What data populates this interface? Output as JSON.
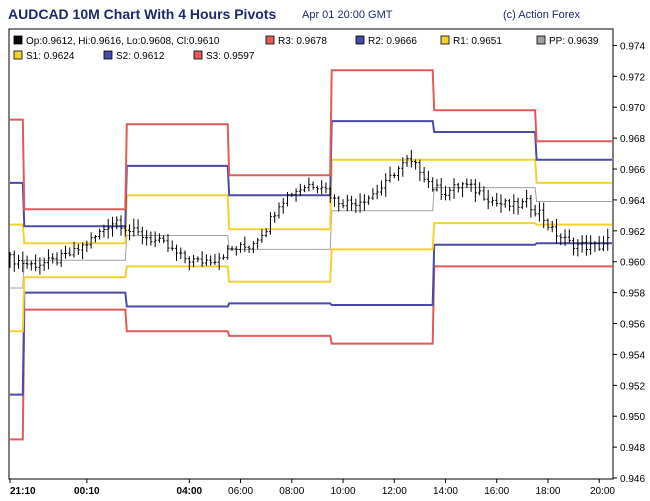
{
  "header": {
    "title": "AUDCAD 10M Chart With 4 Hours Pivots",
    "timestamp": "Apr 01 20:00 GMT",
    "credit": "(c) Action Forex"
  },
  "chart_data": {
    "type": "line",
    "title": "AUDCAD 10M Chart With 4 Hours Pivots",
    "xlabel": "",
    "ylabel": "",
    "ylim": [
      0.946,
      0.975
    ],
    "yticks": [
      "0.974",
      "0.972",
      "0.970",
      "0.968",
      "0.966",
      "0.964",
      "0.962",
      "0.960",
      "0.958",
      "0.956",
      "0.954",
      "0.952",
      "0.950",
      "0.948",
      "0.946"
    ],
    "xticks": [
      {
        "label": "21:10",
        "x": 0,
        "bold": true
      },
      {
        "label": "00:10",
        "x": 18,
        "bold": true
      },
      {
        "label": "04:00",
        "x": 42,
        "bold": true
      },
      {
        "label": "06:00",
        "x": 54,
        "bold": false
      },
      {
        "label": "08:00",
        "x": 66,
        "bold": false
      },
      {
        "label": "10:00",
        "x": 78,
        "bold": false
      },
      {
        "label": "12:00",
        "x": 90,
        "bold": false
      },
      {
        "label": "14:00",
        "x": 102,
        "bold": false
      },
      {
        "label": "16:00",
        "x": 114,
        "bold": false
      },
      {
        "label": "18:00",
        "x": 126,
        "bold": false
      },
      {
        "label": "20:00",
        "x": 138,
        "bold": false
      }
    ],
    "legend": [
      {
        "text": "Op:0.9612, Hi:0.9616, Lo:0.9608, Cl:0.9610",
        "color": "#000000"
      },
      {
        "text": "R3: 0.9678",
        "color": "#e05a5a"
      },
      {
        "text": "R2: 0.9666",
        "color": "#4a4aa8"
      },
      {
        "text": "R1: 0.9651",
        "color": "#f2d22e"
      },
      {
        "text": "PP: 0.9639",
        "color": "#a0a0a0"
      },
      {
        "text": "S1: 0.9624",
        "color": "#f2d22e"
      },
      {
        "text": "S2: 0.9612",
        "color": "#4a4aa8"
      },
      {
        "text": "S3: 0.9597",
        "color": "#e05a5a"
      }
    ],
    "pivot_segments": {
      "x_ranges": [
        [
          0,
          3
        ],
        [
          3,
          27
        ],
        [
          27,
          51
        ],
        [
          51,
          75
        ],
        [
          75,
          99
        ],
        [
          99,
          123
        ],
        [
          123,
          141
        ]
      ],
      "series": [
        {
          "name": "R3",
          "color": "#e05a5a",
          "values": [
            0.9692,
            0.9634,
            0.9689,
            0.9656,
            0.9724,
            0.9698,
            0.9678
          ]
        },
        {
          "name": "R2",
          "color": "#4a4aa8",
          "values": [
            0.9651,
            0.9623,
            0.9662,
            0.9643,
            0.9691,
            0.9684,
            0.9666
          ]
        },
        {
          "name": "R1",
          "color": "#f2d22e",
          "values": [
            0.9624,
            0.9612,
            0.9643,
            0.9621,
            0.9666,
            0.9666,
            0.9651
          ]
        },
        {
          "name": "PP",
          "color": "#a0a0a0",
          "values": [
            0.9583,
            0.9601,
            0.9617,
            0.9608,
            0.9633,
            0.9648,
            0.9639
          ]
        },
        {
          "name": "S1",
          "color": "#f2d22e",
          "values": [
            0.9555,
            0.959,
            0.9597,
            0.9587,
            0.9608,
            0.9625,
            0.9624
          ]
        },
        {
          "name": "S2",
          "color": "#4a4aa8",
          "values": [
            0.9514,
            0.958,
            0.9571,
            0.9573,
            0.9572,
            0.9611,
            0.9612
          ]
        },
        {
          "name": "S3",
          "color": "#e05a5a",
          "values": [
            0.9485,
            0.9569,
            0.9555,
            0.9552,
            0.9547,
            0.9597,
            0.9597
          ]
        }
      ]
    },
    "price_series": {
      "color": "#000000",
      "anchors": [
        [
          0,
          0.9602
        ],
        [
          5,
          0.9598
        ],
        [
          10,
          0.96
        ],
        [
          15,
          0.9606
        ],
        [
          20,
          0.9616
        ],
        [
          23,
          0.9624
        ],
        [
          25,
          0.9627
        ],
        [
          28,
          0.962
        ],
        [
          32,
          0.9616
        ],
        [
          36,
          0.9611
        ],
        [
          40,
          0.9603
        ],
        [
          44,
          0.96
        ],
        [
          48,
          0.9602
        ],
        [
          52,
          0.9608
        ],
        [
          56,
          0.961
        ],
        [
          60,
          0.9622
        ],
        [
          63,
          0.9638
        ],
        [
          66,
          0.9645
        ],
        [
          70,
          0.965
        ],
        [
          73,
          0.965
        ],
        [
          76,
          0.964
        ],
        [
          80,
          0.9638
        ],
        [
          84,
          0.9642
        ],
        [
          88,
          0.965
        ],
        [
          90,
          0.9658
        ],
        [
          93,
          0.9665
        ],
        [
          96,
          0.966
        ],
        [
          99,
          0.9648
        ],
        [
          102,
          0.9645
        ],
        [
          106,
          0.965
        ],
        [
          110,
          0.9645
        ],
        [
          114,
          0.9638
        ],
        [
          118,
          0.9636
        ],
        [
          121,
          0.9638
        ],
        [
          124,
          0.9632
        ],
        [
          127,
          0.962
        ],
        [
          131,
          0.9612
        ],
        [
          135,
          0.961
        ],
        [
          138,
          0.961
        ],
        [
          140,
          0.9614
        ]
      ]
    }
  }
}
